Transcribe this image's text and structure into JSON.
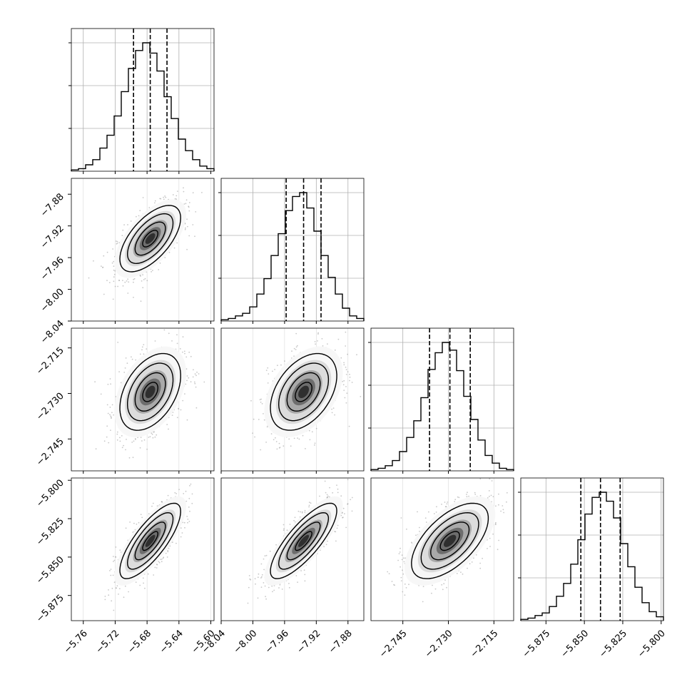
{
  "chart_data": {
    "type": "corner",
    "grid": true,
    "quantile_lines": "dashed",
    "parameters": [
      {
        "mean": -5.676,
        "sd": 0.0205,
        "range": [
          -5.775,
          -5.596
        ],
        "quantiles": [
          -5.697,
          -5.676,
          -5.655
        ],
        "hist_counts": [
          0.01,
          0.02,
          0.05,
          0.09,
          0.18,
          0.28,
          0.43,
          0.62,
          0.8,
          0.94,
          1.0,
          0.92,
          0.78,
          0.58,
          0.41,
          0.25,
          0.16,
          0.09,
          0.04,
          0.02
        ],
        "ticks": [
          -5.76,
          -5.72,
          -5.68,
          -5.64,
          -5.6
        ],
        "tick_labels": [
          "−5.76",
          "−5.72",
          "−5.68",
          "−5.64",
          "−5.60"
        ]
      },
      {
        "mean": -7.936,
        "sd": 0.0225,
        "range": [
          -8.04,
          -7.86
        ],
        "quantiles": [
          -7.958,
          -7.936,
          -7.914
        ],
        "hist_counts": [
          0.01,
          0.02,
          0.04,
          0.06,
          0.11,
          0.21,
          0.33,
          0.51,
          0.68,
          0.86,
          0.97,
          1.0,
          0.88,
          0.7,
          0.51,
          0.34,
          0.21,
          0.1,
          0.04,
          0.02
        ],
        "ticks": [
          -8.04,
          -8.0,
          -7.96,
          -7.92,
          -7.88
        ],
        "tick_labels": [
          "−8.04",
          "−8.00",
          "−7.96",
          "−7.92",
          "−7.88"
        ]
      },
      {
        "mean": -2.7295,
        "sd": 0.0068,
        "range": [
          -2.7555,
          -2.7085
        ],
        "quantiles": [
          -2.7362,
          -2.7295,
          -2.7228
        ],
        "hist_counts": [
          0.01,
          0.02,
          0.04,
          0.08,
          0.15,
          0.26,
          0.39,
          0.57,
          0.79,
          0.92,
          1.0,
          0.94,
          0.78,
          0.58,
          0.4,
          0.24,
          0.12,
          0.06,
          0.02,
          0.01
        ],
        "ticks": [
          -2.745,
          -2.73,
          -2.715
        ],
        "tick_labels": [
          "−2.745",
          "−2.730",
          "−2.715"
        ],
        "y_ticks": [
          -2.715,
          -2.73,
          -2.745
        ],
        "y_tick_labels": [
          "−2.715",
          "−2.730",
          "−2.745"
        ]
      },
      {
        "mean": -5.8395,
        "sd": 0.0132,
        "range": [
          -5.8914,
          -5.7985
        ],
        "quantiles": [
          -5.8523,
          -5.8395,
          -5.8267
        ],
        "hist_counts": [
          0.01,
          0.02,
          0.04,
          0.06,
          0.11,
          0.19,
          0.29,
          0.44,
          0.63,
          0.83,
          0.96,
          1.0,
          0.93,
          0.8,
          0.6,
          0.42,
          0.26,
          0.14,
          0.07,
          0.03
        ],
        "ticks": [
          -5.875,
          -5.85,
          -5.825,
          -5.8
        ],
        "tick_labels": [
          "−5.875",
          "−5.850",
          "−5.825",
          "−5.800"
        ],
        "y_ticks": [
          -5.8,
          -5.825,
          -5.85,
          -5.875
        ],
        "y_tick_labels": [
          "−5.800",
          "−5.825",
          "−5.850",
          "−5.875"
        ]
      }
    ],
    "correlations": {
      "1-0": 0.62,
      "2-0": 0.42,
      "2-1": 0.42,
      "3-0": 0.78,
      "3-1": 0.8,
      "3-2": 0.6
    },
    "row1_y": {
      "ticks": [
        -7.88,
        -7.92,
        -7.96,
        -8.0,
        -8.04
      ],
      "tick_labels": [
        "−7.88",
        "−7.92",
        "−7.96",
        "−8.00",
        "−8.04"
      ]
    }
  }
}
